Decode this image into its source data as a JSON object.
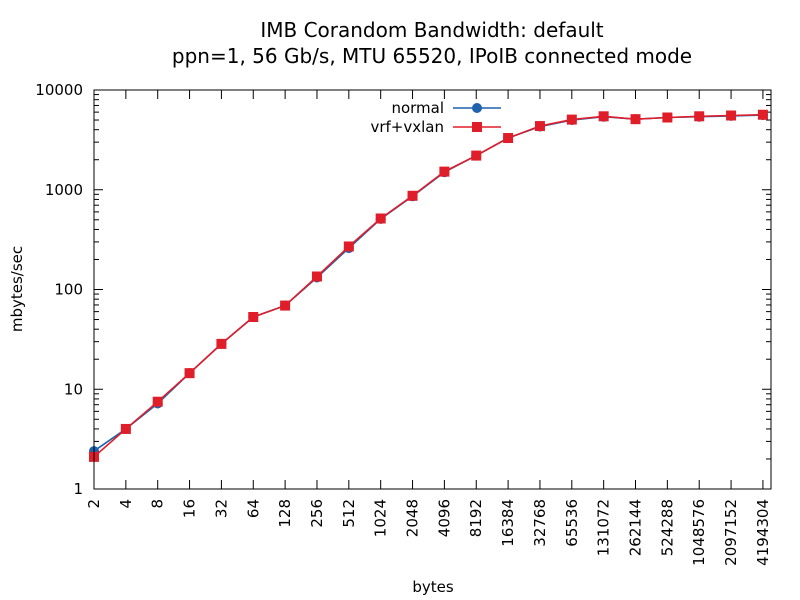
{
  "chart_data": {
    "type": "line",
    "title": "IMB Corandom Bandwidth: default",
    "subtitle": "ppn=1, 56 Gb/s, MTU 65520, IPoIB connected mode",
    "xlabel": "bytes",
    "ylabel": "mbytes/sec",
    "x_scale": "log",
    "y_scale": "log",
    "xlim": [
      2,
      5000000
    ],
    "ylim": [
      1,
      10000
    ],
    "x": [
      2,
      4,
      8,
      16,
      32,
      64,
      128,
      256,
      512,
      1024,
      2048,
      4096,
      8192,
      16384,
      32768,
      65536,
      131072,
      262144,
      524288,
      1048576,
      2097152,
      4194304
    ],
    "x_ticks": [
      "2",
      "4",
      "8",
      "16",
      "32",
      "64",
      "128",
      "256",
      "512",
      "1024",
      "2048",
      "4096",
      "8192",
      "16384",
      "32768",
      "65536",
      "131072",
      "262144",
      "524288",
      "1048576",
      "2097152",
      "4194304"
    ],
    "y_ticks": [
      "1",
      "10",
      "100",
      "1000",
      "10000"
    ],
    "y_tick_values": [
      1,
      10,
      100,
      1000,
      10000
    ],
    "legend_position": "top-center",
    "grid": false,
    "series": [
      {
        "name": "normal",
        "color": "#1f62ad",
        "marker": "circle",
        "values": [
          2.4,
          4.0,
          7.2,
          14.5,
          28.5,
          53,
          69,
          132,
          260,
          510,
          860,
          1500,
          2200,
          3300,
          4300,
          5000,
          5400,
          5100,
          5300,
          5400,
          5500,
          5600
        ]
      },
      {
        "name": "vrf+vxlan",
        "color": "#e01e2a",
        "marker": "square",
        "values": [
          2.1,
          4.0,
          7.5,
          14.5,
          28.5,
          53,
          69,
          135,
          270,
          515,
          870,
          1520,
          2200,
          3300,
          4350,
          5050,
          5450,
          5100,
          5300,
          5450,
          5550,
          5650
        ]
      }
    ]
  }
}
